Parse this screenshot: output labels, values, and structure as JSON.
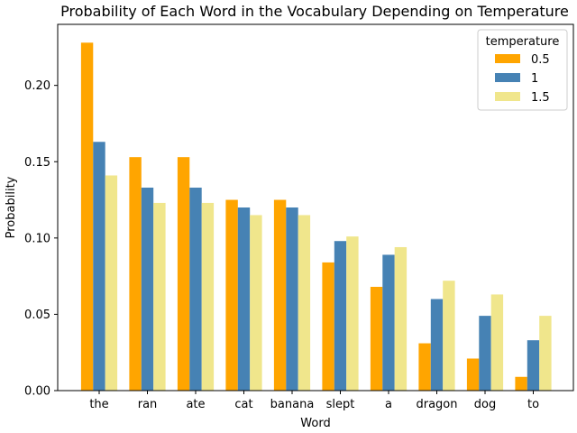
{
  "chart_data": {
    "type": "bar",
    "title": "Probability of Each Word in the Vocabulary Depending on Temperature",
    "xlabel": "Word",
    "ylabel": "Probability",
    "categories": [
      "the",
      "ran",
      "ate",
      "cat",
      "banana",
      "slept",
      "a",
      "dragon",
      "dog",
      "to"
    ],
    "ylim": [
      0,
      0.24
    ],
    "yticks": [
      "0.00",
      "0.05",
      "0.10",
      "0.15",
      "0.20"
    ],
    "ytick_values": [
      0,
      0.05,
      0.1,
      0.15,
      0.2
    ],
    "grid": false,
    "legend": {
      "title": "temperature",
      "placement": "top-right"
    },
    "series": [
      {
        "name": "0.5",
        "color": "#FFA500",
        "values": [
          0.228,
          0.153,
          0.153,
          0.125,
          0.125,
          0.084,
          0.068,
          0.031,
          0.021,
          0.009
        ]
      },
      {
        "name": "1",
        "color": "#4682B4",
        "values": [
          0.163,
          0.133,
          0.133,
          0.12,
          0.12,
          0.098,
          0.089,
          0.06,
          0.049,
          0.033
        ]
      },
      {
        "name": "1.5",
        "color": "#F0E68C",
        "values": [
          0.141,
          0.123,
          0.123,
          0.115,
          0.115,
          0.101,
          0.094,
          0.072,
          0.063,
          0.049
        ]
      }
    ]
  }
}
